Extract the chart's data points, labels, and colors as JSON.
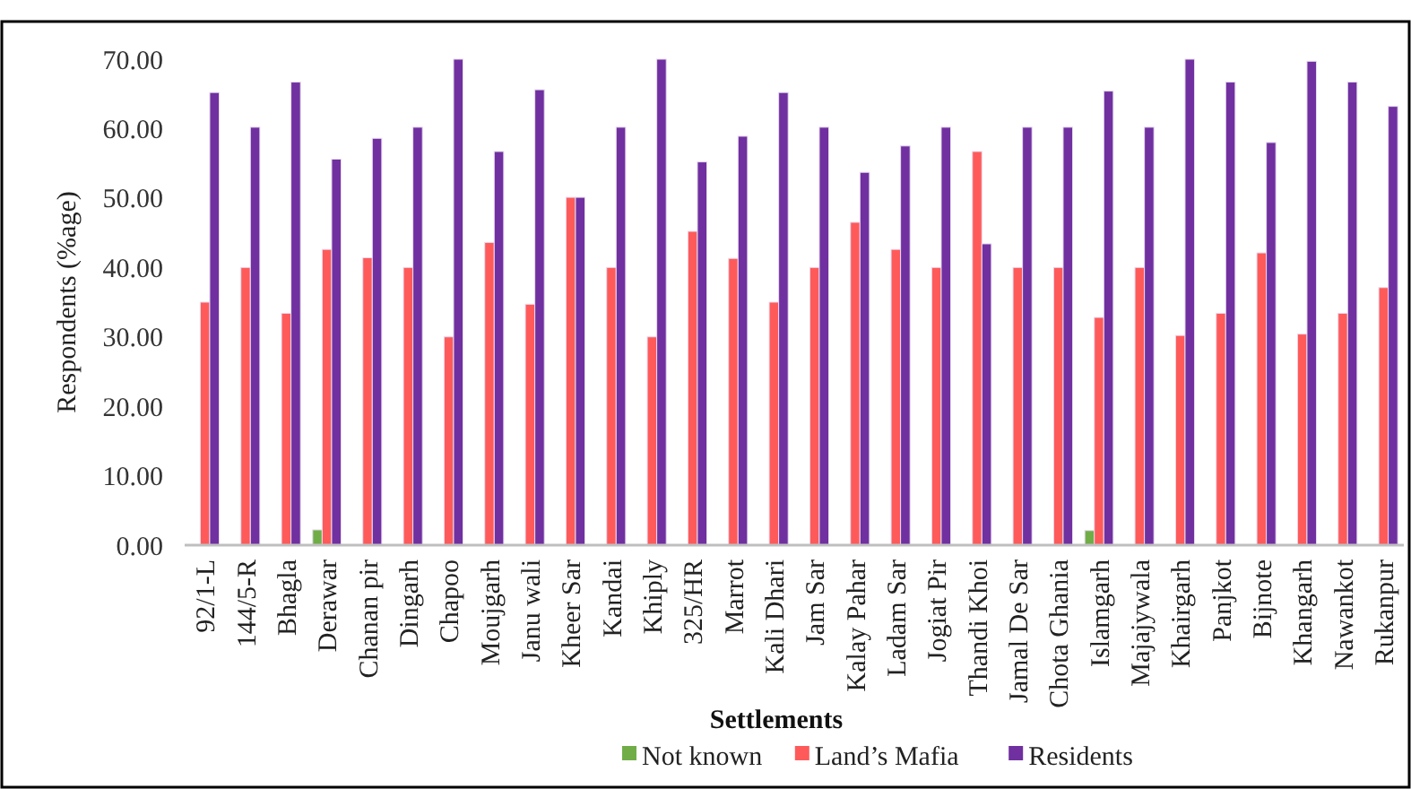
{
  "chart_data": {
    "type": "bar",
    "xlabel": "Settlements",
    "ylabel": "Respondents (%age)",
    "categories": [
      "92/1-L",
      "144/5-R",
      "Bhagla",
      "Derawar",
      "Chanan pir",
      "Dingarh",
      "Chapoo",
      "Moujgarh",
      "Janu wali",
      "Kheer Sar",
      "Kandai",
      "Khiply",
      "325/HR",
      "Marrot",
      "Kali Dhari",
      "Jam Sar",
      "Kalay Pahar",
      "Ladam Sar",
      "Jogiat Pir",
      "Thandi Khoi",
      "Jamal De Sar",
      "Chota Ghania",
      "Islamgarh",
      "Majajywala",
      "Khairgarh",
      "Panjkot",
      "Bijnote",
      "Khangarh",
      "Nawankot",
      "Rukanpur"
    ],
    "series": [
      {
        "name": "Not known",
        "color": "#70ad47",
        "values": [
          null,
          null,
          null,
          2.2,
          null,
          null,
          null,
          null,
          null,
          null,
          null,
          null,
          null,
          null,
          null,
          null,
          null,
          null,
          null,
          null,
          null,
          null,
          2.1,
          null,
          null,
          null,
          null,
          null,
          null,
          null
        ]
      },
      {
        "name": "Land’s Mafia",
        "color": "#ff5a5a",
        "values": [
          35,
          40,
          33.4,
          42.6,
          41.4,
          40,
          30,
          43.6,
          34.7,
          50.1,
          40,
          30,
          45.2,
          41.3,
          35,
          40,
          46.5,
          42.6,
          40,
          56.7,
          40,
          40,
          32.8,
          40,
          30.2,
          33.4,
          42.1,
          30.4,
          33.4,
          37.1
        ]
      },
      {
        "name": "Residents",
        "color": "#7030a0",
        "values": [
          65.2,
          60.2,
          66.7,
          55.6,
          58.6,
          60.2,
          70,
          56.7,
          65.6,
          50.1,
          60.2,
          70,
          55.2,
          58.9,
          65.2,
          60.2,
          53.7,
          57.5,
          60.2,
          43.4,
          60.2,
          60.2,
          65.4,
          60.2,
          70,
          66.7,
          58,
          69.7,
          66.7,
          63.2
        ]
      }
    ],
    "ylim": [
      0,
      70
    ],
    "yticks": [
      {
        "value": 0,
        "label": "0.00"
      },
      {
        "value": 10,
        "label": "10.00"
      },
      {
        "value": 20,
        "label": "20.00"
      },
      {
        "value": 30,
        "label": "30.00"
      },
      {
        "value": 40,
        "label": "40.00"
      },
      {
        "value": 50,
        "label": "50.00"
      },
      {
        "value": 60,
        "label": "60.00"
      },
      {
        "value": 70,
        "label": "70.00"
      }
    ],
    "grid": false,
    "legend": "bottom"
  }
}
